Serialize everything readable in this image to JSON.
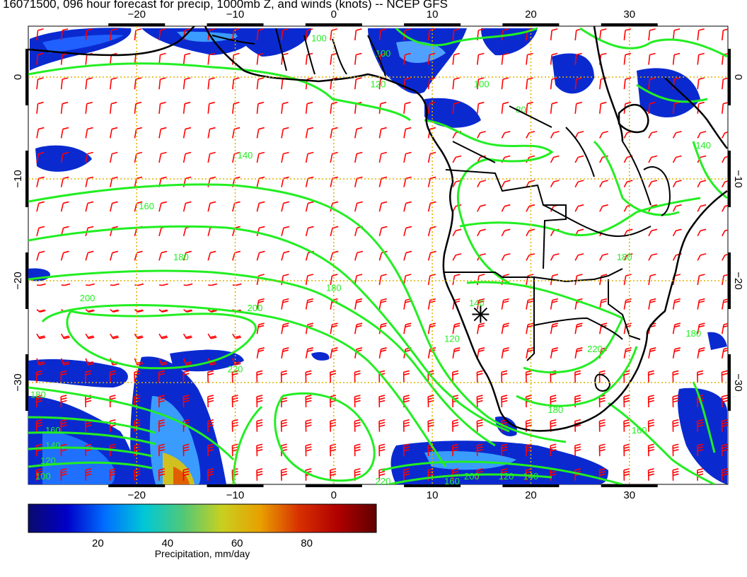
{
  "title": "16071500, 096 hour forecast for precip, 1000mb Z, and winds (knots) -- NCEP GFS",
  "map": {
    "lon_range": [
      -31,
      40
    ],
    "lat_range": [
      -40,
      5
    ],
    "lon_ticks": [
      {
        "value": -20,
        "label": "−20"
      },
      {
        "value": -10,
        "label": "−10"
      },
      {
        "value": 0,
        "label": "0"
      },
      {
        "value": 10,
        "label": "10"
      },
      {
        "value": 20,
        "label": "20"
      },
      {
        "value": 30,
        "label": "30"
      }
    ],
    "lat_ticks": [
      {
        "value": 0,
        "label": "0"
      },
      {
        "value": -10,
        "label": "−10"
      },
      {
        "value": -20,
        "label": "−20"
      },
      {
        "value": -30,
        "label": "−30"
      }
    ],
    "grid_color": "#e0b000",
    "contour_color": "#22ee22",
    "wind_color": "#ff0000",
    "contours": [
      {
        "label": "100",
        "lon": -1.5,
        "lat": 3.5
      },
      {
        "label": "100",
        "lon": 5,
        "lat": 2
      },
      {
        "label": "120",
        "lon": 4.5,
        "lat": -1
      },
      {
        "label": "100",
        "lon": 15,
        "lat": -1
      },
      {
        "label": "80",
        "lon": 19,
        "lat": -3.5
      },
      {
        "label": "140",
        "lon": 37.5,
        "lat": -7
      },
      {
        "label": "140",
        "lon": -9,
        "lat": -8
      },
      {
        "label": "160",
        "lon": -19,
        "lat": -13
      },
      {
        "label": "180",
        "lon": -15.5,
        "lat": -18
      },
      {
        "label": "180",
        "lon": 29.5,
        "lat": -18
      },
      {
        "label": "200",
        "lon": -25,
        "lat": -22
      },
      {
        "label": "200",
        "lon": -8,
        "lat": -23
      },
      {
        "label": "180",
        "lon": 0,
        "lat": -21
      },
      {
        "label": "140",
        "lon": 14.5,
        "lat": -22.5
      },
      {
        "label": "120",
        "lon": 12,
        "lat": -26
      },
      {
        "label": "220",
        "lon": 26.5,
        "lat": -27
      },
      {
        "label": "220",
        "lon": -10,
        "lat": -29
      },
      {
        "label": "180",
        "lon": 36.5,
        "lat": -25.5
      },
      {
        "label": "180",
        "lon": -30,
        "lat": -31.5
      },
      {
        "label": "160",
        "lon": -28.5,
        "lat": -35
      },
      {
        "label": "140",
        "lon": -28.5,
        "lat": -36.5
      },
      {
        "label": "120",
        "lon": -29,
        "lat": -38
      },
      {
        "label": "100",
        "lon": -29.5,
        "lat": -39.5
      },
      {
        "label": "180",
        "lon": 22.5,
        "lat": -33
      },
      {
        "label": "160",
        "lon": 31,
        "lat": -35
      },
      {
        "label": "220",
        "lon": 5,
        "lat": -40
      },
      {
        "label": "160",
        "lon": 12,
        "lat": -40
      },
      {
        "label": "200",
        "lon": 14,
        "lat": -39.5
      },
      {
        "label": "120",
        "lon": 17.5,
        "lat": -39.5
      },
      {
        "label": "140",
        "lon": 20,
        "lat": -39.5
      }
    ],
    "marker": {
      "lon": 14.9,
      "lat": -23.3
    }
  },
  "colorbar": {
    "ticks": [
      {
        "value": 20,
        "label": "20"
      },
      {
        "value": 40,
        "label": "40"
      },
      {
        "value": 60,
        "label": "60"
      },
      {
        "value": 80,
        "label": "80"
      }
    ],
    "range": [
      0,
      100
    ],
    "label": "Precipitation, mm/day",
    "colors": [
      "#0a0a6e",
      "#0000c8",
      "#0070ff",
      "#00c8d8",
      "#50c878",
      "#c8d020",
      "#e8a000",
      "#d83000",
      "#b00000",
      "#600000"
    ]
  }
}
